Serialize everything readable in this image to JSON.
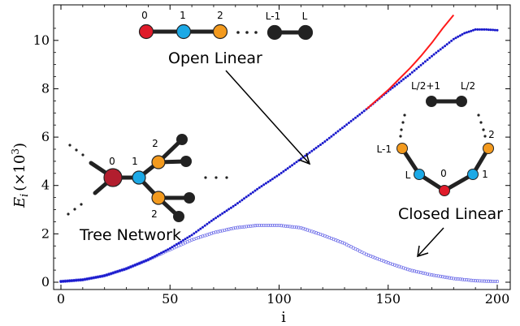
{
  "chart_data": {
    "type": "scatter",
    "xlabel": "i",
    "ylabel": "E",
    "ylabel_sub": "i",
    "ylabel_unit": "(×10",
    "ylabel_exp": "3",
    "ylabel_close": ")",
    "xlim": [
      0,
      200
    ],
    "ylim": [
      0,
      11
    ],
    "x_ticks": [
      0,
      50,
      100,
      150,
      200
    ],
    "y_ticks": [
      0,
      2,
      4,
      6,
      8,
      10
    ],
    "x_tick_labels": [
      "0",
      "50",
      "100",
      "150",
      "200"
    ],
    "y_tick_labels": [
      "0",
      "2",
      "4",
      "6",
      "8",
      "10"
    ],
    "series": [
      {
        "color": "#1a1acc",
        "marker": "filled",
        "x": [
          0,
          10,
          20,
          30,
          40,
          50,
          60,
          70,
          80,
          90,
          100,
          110,
          120,
          130,
          140,
          150,
          160,
          170,
          175,
          180,
          185,
          190,
          195,
          200
        ],
        "y": [
          0.03,
          0.1,
          0.27,
          0.56,
          0.93,
          1.4,
          1.95,
          2.6,
          3.2,
          3.85,
          4.45,
          5.1,
          5.75,
          6.45,
          7.15,
          7.9,
          8.6,
          9.35,
          9.7,
          10.05,
          10.3,
          10.45,
          10.45,
          10.42
        ]
      },
      {
        "color": "#ff1a1a",
        "marker": "line",
        "x": [
          140,
          145,
          150,
          155,
          160,
          165,
          170,
          175,
          180
        ],
        "y": [
          7.15,
          7.55,
          7.95,
          8.4,
          8.85,
          9.35,
          9.9,
          10.5,
          11.05
        ]
      },
      {
        "color": "#6a6ae8",
        "marker": "open",
        "x": [
          0,
          10,
          20,
          30,
          40,
          50,
          60,
          70,
          80,
          90,
          100,
          110,
          120,
          130,
          140,
          150,
          160,
          170,
          180,
          190,
          200
        ],
        "y": [
          0.03,
          0.1,
          0.27,
          0.56,
          0.93,
          1.35,
          1.75,
          2.05,
          2.25,
          2.35,
          2.35,
          2.25,
          1.95,
          1.6,
          1.15,
          0.8,
          0.5,
          0.3,
          0.15,
          0.06,
          0.03
        ]
      }
    ],
    "annotations": {
      "open_linear": "Open Linear",
      "closed_linear": "Closed Linear",
      "tree_network": "Tree Network"
    },
    "open_chain_labels": [
      "0",
      "1",
      "2",
      "L-1",
      "L"
    ],
    "closed_ring_labels": [
      "L/2+1",
      "L/2",
      "L-1",
      "2",
      "L",
      "0",
      "1"
    ],
    "tree_labels": [
      "0",
      "1",
      "2",
      "2"
    ],
    "node_colors": {
      "red": "#e01b2a",
      "blue": "#1ca9e6",
      "orange": "#f39a1e",
      "black": "#222222",
      "tree_root": "#b21e2e"
    }
  }
}
